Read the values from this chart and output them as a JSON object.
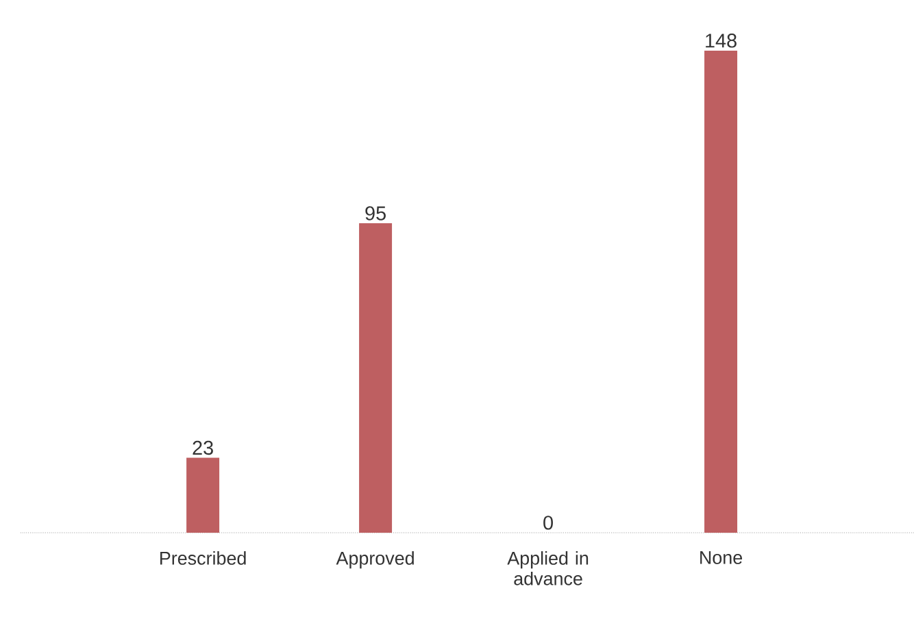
{
  "chart_data": {
    "type": "bar",
    "categories": [
      "Prescribed",
      "Approved",
      "Applied in advance",
      "None"
    ],
    "values": [
      23,
      95,
      0,
      148
    ],
    "color": "#be5f61",
    "data_labels": true,
    "tick_labels": "x"
  }
}
